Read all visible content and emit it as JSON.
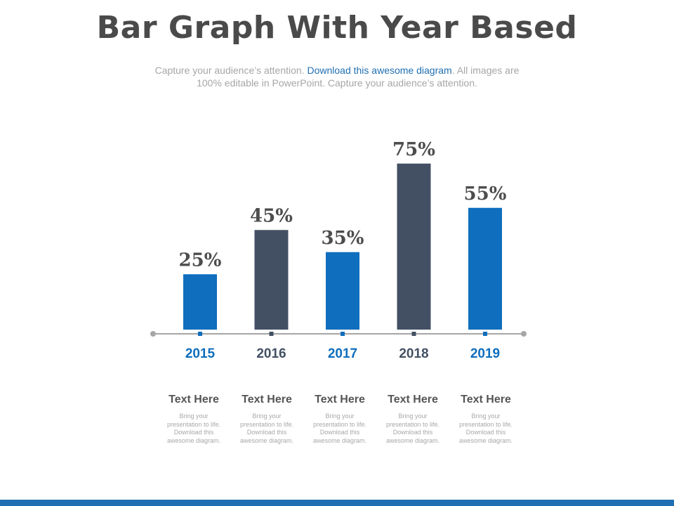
{
  "page": {
    "title": "Bar Graph With Year Based",
    "subtitle_part1": "Capture your audience’s attention. ",
    "subtitle_link": "Download this awesome diagram",
    "subtitle_part2": ". All images are 100% editable in PowerPoint. Capture your audience’s attention."
  },
  "colors": {
    "blue": "#0f6ebd",
    "slate": "#435064",
    "axis": "#a6a6a6",
    "label": "#4d4d4d",
    "footer": "#1f6fb2"
  },
  "chart_data": {
    "type": "bar",
    "title": "",
    "xlabel": "",
    "ylabel": "",
    "categories": [
      "2015",
      "2016",
      "2017",
      "2018",
      "2019"
    ],
    "values": [
      25,
      45,
      35,
      75,
      55
    ],
    "value_labels": [
      "25%",
      "45%",
      "35%",
      "75%",
      "55%"
    ],
    "bar_colors": [
      "blue",
      "slate",
      "blue",
      "slate",
      "blue"
    ],
    "ylim": [
      0,
      100
    ],
    "grid": false
  },
  "captions": [
    {
      "title": "Text Here",
      "text": "Bring your presentation to life. Download this awesome diagram."
    },
    {
      "title": "Text Here",
      "text": "Bring your presentation to life. Download this awesome diagram."
    },
    {
      "title": "Text Here",
      "text": "Bring your presentation to life. Download this awesome diagram."
    },
    {
      "title": "Text Here",
      "text": "Bring your presentation to life. Download this awesome diagram."
    },
    {
      "title": "Text Here",
      "text": "Bring your presentation to life. Download this awesome diagram."
    }
  ]
}
